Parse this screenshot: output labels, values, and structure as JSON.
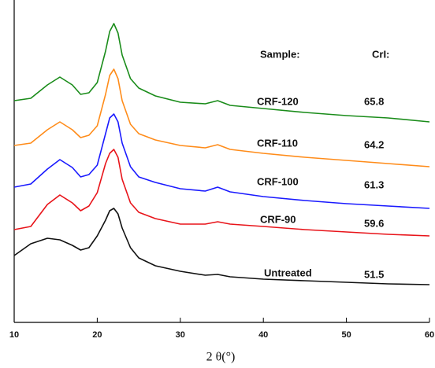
{
  "chart_data": {
    "type": "line",
    "x_label": "2 θ(°)",
    "legend_header": {
      "sample": "Sample:",
      "crystallinity": "CrI:"
    },
    "x": [
      10,
      12,
      14,
      15.5,
      17,
      18,
      19,
      20,
      21,
      21.5,
      22,
      22.5,
      23,
      24,
      25,
      27,
      30,
      33,
      34.5,
      36,
      40,
      45,
      50,
      55,
      60
    ],
    "xlim": [
      10,
      60
    ],
    "xticks": [
      10,
      20,
      30,
      40,
      50,
      60
    ],
    "ylim": [
      0,
      410
    ],
    "series": [
      {
        "name": "CRF-120",
        "crystallinity": 65.8,
        "color": "#1a8c1a",
        "values": [
          282,
          285,
          302,
          312,
          302,
          290,
          292,
          305,
          345,
          370,
          380,
          368,
          340,
          310,
          298,
          288,
          280,
          278,
          282,
          276,
          272,
          267,
          263,
          260,
          255
        ]
      },
      {
        "name": "CRF-110",
        "crystallinity": 64.2,
        "color": "#ff8c1a",
        "values": [
          225,
          228,
          245,
          255,
          245,
          235,
          238,
          250,
          290,
          314,
          322,
          310,
          282,
          252,
          240,
          232,
          225,
          222,
          226,
          220,
          215,
          210,
          206,
          202,
          198
        ]
      },
      {
        "name": "CRF-100",
        "crystallinity": 61.3,
        "color": "#1a1aff",
        "values": [
          172,
          176,
          195,
          207,
          197,
          185,
          188,
          200,
          240,
          260,
          265,
          255,
          228,
          198,
          185,
          178,
          170,
          167,
          172,
          166,
          160,
          155,
          151,
          148,
          145
        ]
      },
      {
        "name": "CRF-90",
        "crystallinity": 59.6,
        "color": "#e8141a",
        "values": [
          118,
          122,
          150,
          162,
          152,
          142,
          148,
          165,
          202,
          215,
          220,
          210,
          182,
          152,
          140,
          132,
          125,
          125,
          128,
          125,
          122,
          118,
          115,
          112,
          110
        ]
      },
      {
        "name": "Untreated",
        "crystallinity": 51.5,
        "color": "#111111",
        "values": [
          85,
          100,
          107,
          105,
          98,
          92,
          95,
          110,
          130,
          142,
          145,
          138,
          120,
          95,
          82,
          72,
          65,
          60,
          61,
          58,
          55,
          53,
          51,
          49,
          48
        ]
      }
    ]
  }
}
